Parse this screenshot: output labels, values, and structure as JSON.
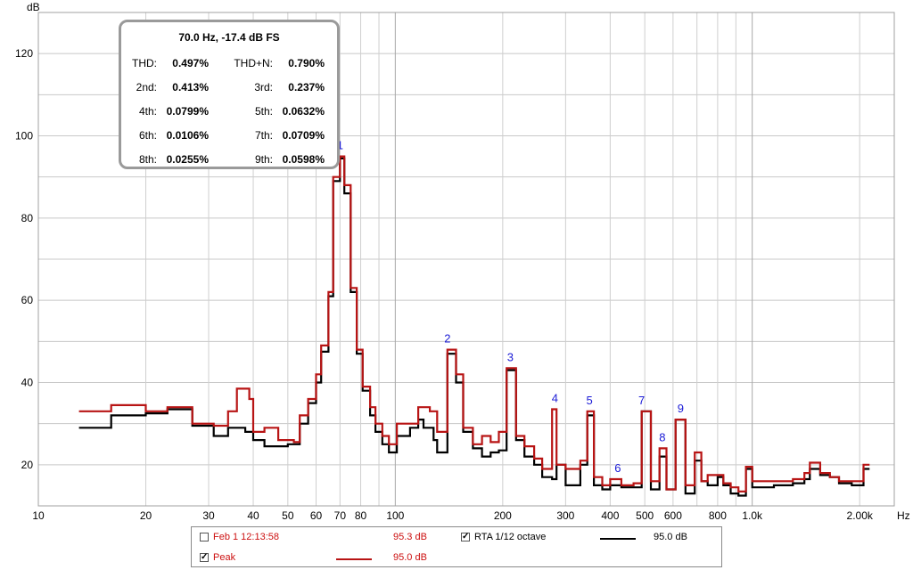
{
  "chart_data": {
    "type": "line",
    "title": "",
    "y_unit_label": "dB",
    "x_unit_label": "Hz",
    "xscale": "log",
    "xlim": [
      10,
      2500
    ],
    "ylim": [
      10,
      130
    ],
    "grid": true,
    "y_ticks": [
      "20",
      "40",
      "60",
      "80",
      "100",
      "120"
    ],
    "x_ticks": [
      "10",
      "20",
      "30",
      "40",
      "50",
      "60",
      "70",
      "80",
      "100",
      "200",
      "300",
      "400",
      "500",
      "600",
      "800",
      "1.0k",
      "2.00k"
    ],
    "series": [
      {
        "name": "RTA 1/12 octave",
        "color": "#000000",
        "points": [
          [
            13,
            29
          ],
          [
            16,
            32
          ],
          [
            20,
            32.5
          ],
          [
            23,
            33.5
          ],
          [
            27,
            29.5
          ],
          [
            31,
            27
          ],
          [
            34,
            29
          ],
          [
            38,
            28
          ],
          [
            40,
            26
          ],
          [
            43,
            24.5
          ],
          [
            50,
            25
          ],
          [
            54,
            30
          ],
          [
            57,
            35
          ],
          [
            60,
            40
          ],
          [
            62,
            47.5
          ],
          [
            65,
            61
          ],
          [
            67,
            89
          ],
          [
            70,
            94.5
          ],
          [
            72,
            86
          ],
          [
            75,
            62
          ],
          [
            78,
            47
          ],
          [
            81,
            38
          ],
          [
            85,
            32
          ],
          [
            88,
            28
          ],
          [
            92,
            25
          ],
          [
            96,
            23
          ],
          [
            101,
            27
          ],
          [
            110,
            29
          ],
          [
            116,
            31
          ],
          [
            120,
            29
          ],
          [
            128,
            26
          ],
          [
            131,
            23
          ],
          [
            140,
            47
          ],
          [
            148,
            40
          ],
          [
            155,
            28
          ],
          [
            165,
            24
          ],
          [
            175,
            22
          ],
          [
            185,
            23
          ],
          [
            195,
            23.5
          ],
          [
            205,
            43
          ],
          [
            218,
            26
          ],
          [
            230,
            22
          ],
          [
            245,
            20
          ],
          [
            258,
            17
          ],
          [
            275,
            16.5
          ],
          [
            283,
            20
          ],
          [
            300,
            15
          ],
          [
            330,
            20
          ],
          [
            345,
            32
          ],
          [
            360,
            15
          ],
          [
            380,
            14
          ],
          [
            400,
            15
          ],
          [
            430,
            14.5
          ],
          [
            465,
            14.5
          ],
          [
            490,
            33
          ],
          [
            520,
            14
          ],
          [
            550,
            22
          ],
          [
            575,
            14
          ],
          [
            610,
            31
          ],
          [
            650,
            13
          ],
          [
            690,
            21
          ],
          [
            720,
            16
          ],
          [
            750,
            15
          ],
          [
            800,
            17
          ],
          [
            830,
            15
          ],
          [
            870,
            13
          ],
          [
            915,
            12.5
          ],
          [
            960,
            19
          ],
          [
            1000,
            14.5
          ],
          [
            1150,
            15
          ],
          [
            1300,
            15.5
          ],
          [
            1400,
            16.5
          ],
          [
            1450,
            19
          ],
          [
            1550,
            17.5
          ],
          [
            1650,
            17
          ],
          [
            1750,
            15.5
          ],
          [
            1900,
            15
          ],
          [
            2050,
            19
          ]
        ]
      },
      {
        "name": "Peak",
        "color": "#b81414",
        "points": [
          [
            13,
            33
          ],
          [
            16,
            34.5
          ],
          [
            20,
            33
          ],
          [
            23,
            34
          ],
          [
            27,
            30
          ],
          [
            31,
            29.5
          ],
          [
            34,
            33
          ],
          [
            36,
            38.5
          ],
          [
            39,
            36
          ],
          [
            40,
            28
          ],
          [
            43,
            29
          ],
          [
            47,
            26
          ],
          [
            52,
            25.5
          ],
          [
            54,
            32
          ],
          [
            57,
            36
          ],
          [
            60,
            42
          ],
          [
            62,
            49
          ],
          [
            65,
            62
          ],
          [
            67,
            90
          ],
          [
            70,
            95
          ],
          [
            72,
            88
          ],
          [
            75,
            63
          ],
          [
            78,
            48
          ],
          [
            81,
            39
          ],
          [
            85,
            34
          ],
          [
            88,
            30
          ],
          [
            92,
            27
          ],
          [
            96,
            25
          ],
          [
            101,
            30
          ],
          [
            110,
            30
          ],
          [
            116,
            34
          ],
          [
            125,
            33
          ],
          [
            131,
            28
          ],
          [
            140,
            48
          ],
          [
            148,
            42
          ],
          [
            155,
            29
          ],
          [
            165,
            25
          ],
          [
            175,
            27
          ],
          [
            185,
            25.5
          ],
          [
            195,
            28
          ],
          [
            205,
            43.5
          ],
          [
            218,
            27
          ],
          [
            230,
            24.5
          ],
          [
            245,
            21.5
          ],
          [
            258,
            19
          ],
          [
            275,
            33.5
          ],
          [
            283,
            20
          ],
          [
            300,
            19
          ],
          [
            330,
            21
          ],
          [
            345,
            33
          ],
          [
            360,
            17
          ],
          [
            380,
            15
          ],
          [
            400,
            16.5
          ],
          [
            430,
            15
          ],
          [
            465,
            15.5
          ],
          [
            490,
            33
          ],
          [
            520,
            16
          ],
          [
            550,
            24
          ],
          [
            575,
            14
          ],
          [
            610,
            31
          ],
          [
            650,
            15
          ],
          [
            690,
            23
          ],
          [
            720,
            16
          ],
          [
            750,
            17.5
          ],
          [
            800,
            17.5
          ],
          [
            830,
            15.5
          ],
          [
            870,
            14.5
          ],
          [
            915,
            13.5
          ],
          [
            960,
            19.5
          ],
          [
            1000,
            16
          ],
          [
            1150,
            16
          ],
          [
            1300,
            16.5
          ],
          [
            1400,
            18
          ],
          [
            1450,
            20.5
          ],
          [
            1550,
            18
          ],
          [
            1650,
            17
          ],
          [
            1750,
            16
          ],
          [
            1900,
            16
          ],
          [
            2050,
            20
          ]
        ]
      }
    ],
    "harmonic_markers": [
      {
        "label": "1",
        "x": 70,
        "y": 95
      },
      {
        "label": "2",
        "x": 140,
        "y": 48
      },
      {
        "label": "3",
        "x": 210,
        "y": 43.5
      },
      {
        "label": "4",
        "x": 280,
        "y": 33.5
      },
      {
        "label": "5",
        "x": 350,
        "y": 33
      },
      {
        "label": "6",
        "x": 420,
        "y": 16.5
      },
      {
        "label": "7",
        "x": 490,
        "y": 33
      },
      {
        "label": "8",
        "x": 560,
        "y": 24
      },
      {
        "label": "9",
        "x": 630,
        "y": 31
      }
    ]
  },
  "thd_panel": {
    "header": "70.0 Hz, -17.4 dB FS",
    "rows": [
      [
        {
          "label": "THD:",
          "value": "0.497%"
        },
        {
          "label": "THD+N:",
          "value": "0.790%"
        }
      ],
      [
        {
          "label": "2nd:",
          "value": "0.413%"
        },
        {
          "label": "3rd:",
          "value": "0.237%"
        }
      ],
      [
        {
          "label": "4th:",
          "value": "0.0799%"
        },
        {
          "label": "5th:",
          "value": "0.0632%"
        }
      ],
      [
        {
          "label": "6th:",
          "value": "0.0106%"
        },
        {
          "label": "7th:",
          "value": "0.0709%"
        }
      ],
      [
        {
          "label": "8th:",
          "value": "0.0255%"
        },
        {
          "label": "9th:",
          "value": "0.0598%"
        }
      ]
    ]
  },
  "legend": {
    "item1": {
      "label": "Feb 1 12:13:58",
      "value": "95.3 dB",
      "checked": false,
      "color": "#cc1010"
    },
    "item2": {
      "label": "Peak",
      "value": "95.0 dB",
      "checked": true,
      "color": "#b81414"
    },
    "item3": {
      "label": "RTA 1/12 octave",
      "value": "95.0 dB",
      "checked": true,
      "color": "#000000"
    }
  },
  "check_mark": "✓"
}
